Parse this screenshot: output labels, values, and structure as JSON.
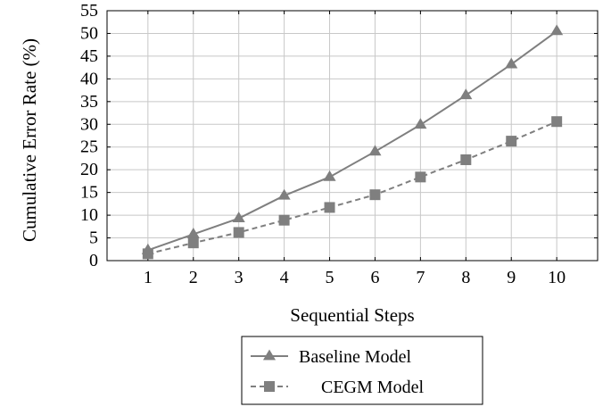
{
  "chart_data": {
    "type": "line",
    "xlabel": "Sequential Steps",
    "ylabel": "Cumulative Error Rate (%)",
    "x": [
      1,
      2,
      3,
      4,
      5,
      6,
      7,
      8,
      9,
      10
    ],
    "xlim": [
      0.1,
      10.9
    ],
    "ylim": [
      0,
      55
    ],
    "xticks": [
      1,
      2,
      3,
      4,
      5,
      6,
      7,
      8,
      9,
      10
    ],
    "yticks": [
      0,
      5,
      10,
      15,
      20,
      25,
      30,
      35,
      40,
      45,
      50,
      55
    ],
    "grid": true,
    "legend_position": "bottom-center, below axes",
    "series": [
      {
        "name": "Baseline Model",
        "values": [
          2.3,
          5.8,
          9.3,
          14.3,
          18.4,
          24.0,
          29.9,
          36.4,
          43.2,
          50.5
        ],
        "marker": "triangle",
        "line": "solid",
        "color": "#7f7f7f"
      },
      {
        "name": "CEGM Model",
        "values": [
          1.5,
          3.9,
          6.2,
          8.9,
          11.7,
          14.5,
          18.4,
          22.2,
          26.3,
          30.6
        ],
        "marker": "square",
        "line": "dashed",
        "color": "#7f7f7f"
      }
    ]
  }
}
